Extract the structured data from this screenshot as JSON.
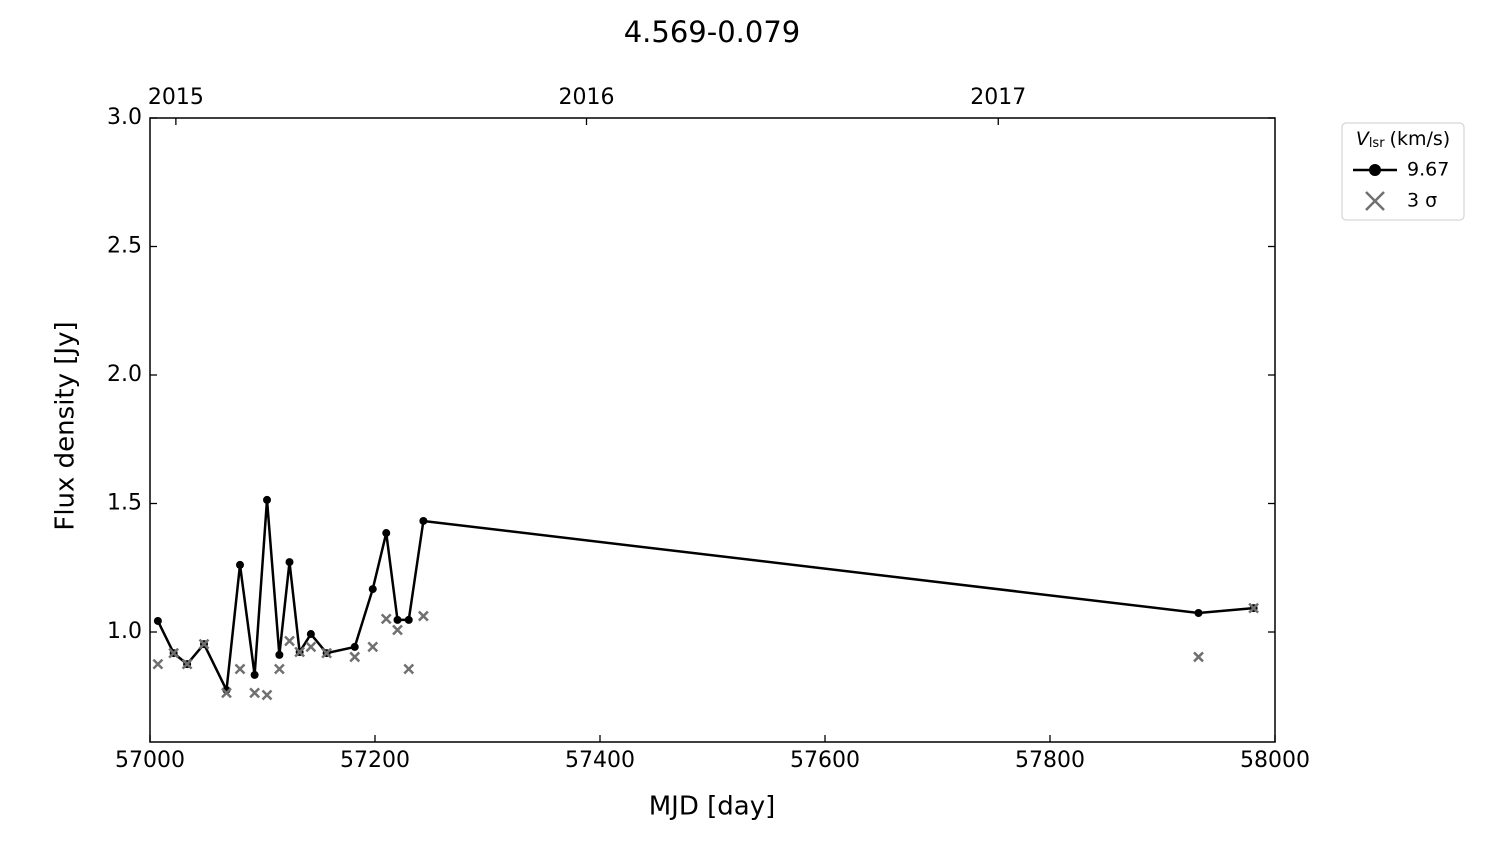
{
  "chart_data": {
    "type": "line",
    "title": "4.569-0.079",
    "xlabel": "MJD [day]",
    "ylabel": "Flux density [Jy]",
    "x": [
      57007,
      57021,
      57033,
      57048,
      57068,
      57080,
      57093,
      57104,
      57115,
      57124,
      57133,
      57143,
      57157,
      57182,
      57198,
      57210,
      57220,
      57230,
      57243,
      57932,
      57981
    ],
    "series": [
      {
        "name": "9.67",
        "color": "#000000",
        "marker": "o",
        "line": true,
        "values": [
          1.043,
          0.918,
          0.875,
          0.953,
          0.774,
          1.261,
          0.833,
          1.514,
          0.911,
          1.272,
          0.922,
          0.992,
          0.918,
          0.942,
          1.167,
          1.385,
          1.047,
          1.047,
          1.432,
          1.074,
          1.093
        ]
      },
      {
        "name": "3 σ",
        "color": "#707070",
        "marker": "x",
        "line": false,
        "values": [
          0.875,
          0.918,
          0.875,
          0.953,
          0.763,
          0.856,
          0.763,
          0.755,
          0.856,
          0.965,
          0.922,
          0.942,
          0.918,
          0.903,
          0.942,
          1.051,
          1.008,
          0.856,
          1.062,
          0.903,
          1.093
        ]
      }
    ],
    "legend_title": {
      "symbol": "V",
      "subscript": "lsr",
      "unit": "(km/s)"
    },
    "legend": "outside-upper-right",
    "xlim": [
      57000,
      58000
    ],
    "xticks": [
      57000,
      57200,
      57400,
      57600,
      57800,
      58000
    ],
    "x2ticks": [
      {
        "value": 57023,
        "label": "2015"
      },
      {
        "value": 57388,
        "label": "2016"
      },
      {
        "value": 57754,
        "label": "2017"
      }
    ],
    "ylim": [
      0.572,
      3.0
    ],
    "yticks": [
      {
        "value": 1.0,
        "label": "1.0"
      },
      1.5,
      {
        "value": 2.0,
        "label": "2.0"
      },
      2.5,
      {
        "value": 3.0,
        "label": "3.0"
      }
    ],
    "grid": false
  }
}
